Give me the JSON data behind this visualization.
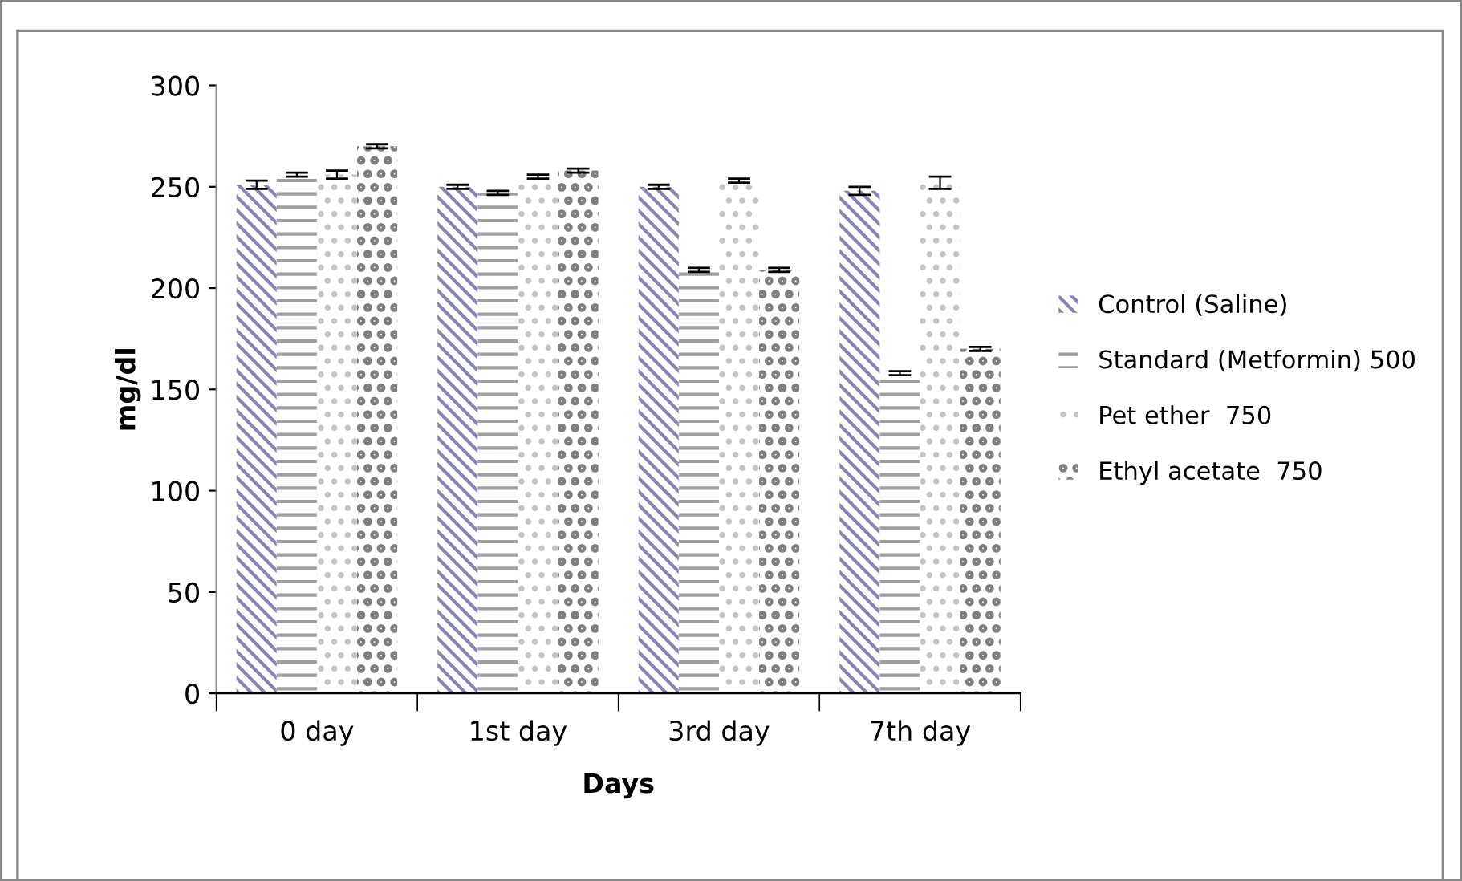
{
  "chart_data": {
    "type": "bar",
    "xlabel": "Days",
    "ylabel": "mg/dl",
    "categories": [
      "0 day",
      "1st day",
      "3rd day",
      "7th day"
    ],
    "series": [
      {
        "name": "Control (Saline)",
        "color": "#8585b5",
        "values": [
          251,
          250,
          250,
          248
        ],
        "errors": [
          2,
          1,
          1,
          2
        ]
      },
      {
        "name": "Standard (Metformin) 500",
        "color": "#a0a0a0",
        "values": [
          256,
          247,
          209,
          158
        ],
        "errors": [
          1,
          1,
          1,
          1
        ]
      },
      {
        "name": "Pet ether  750",
        "color": "#c4c4c4",
        "values": [
          256,
          255,
          253,
          252
        ],
        "errors": [
          2,
          1,
          1,
          3
        ]
      },
      {
        "name": "Ethyl acetate  750",
        "color": "#7f7f7f",
        "values": [
          270,
          258,
          209,
          170
        ],
        "errors": [
          1,
          1,
          1,
          1
        ]
      }
    ],
    "ylim": [
      0,
      300
    ],
    "yticks": [
      0,
      50,
      100,
      150,
      200,
      250,
      300
    ],
    "grid": false,
    "legend": "right"
  }
}
